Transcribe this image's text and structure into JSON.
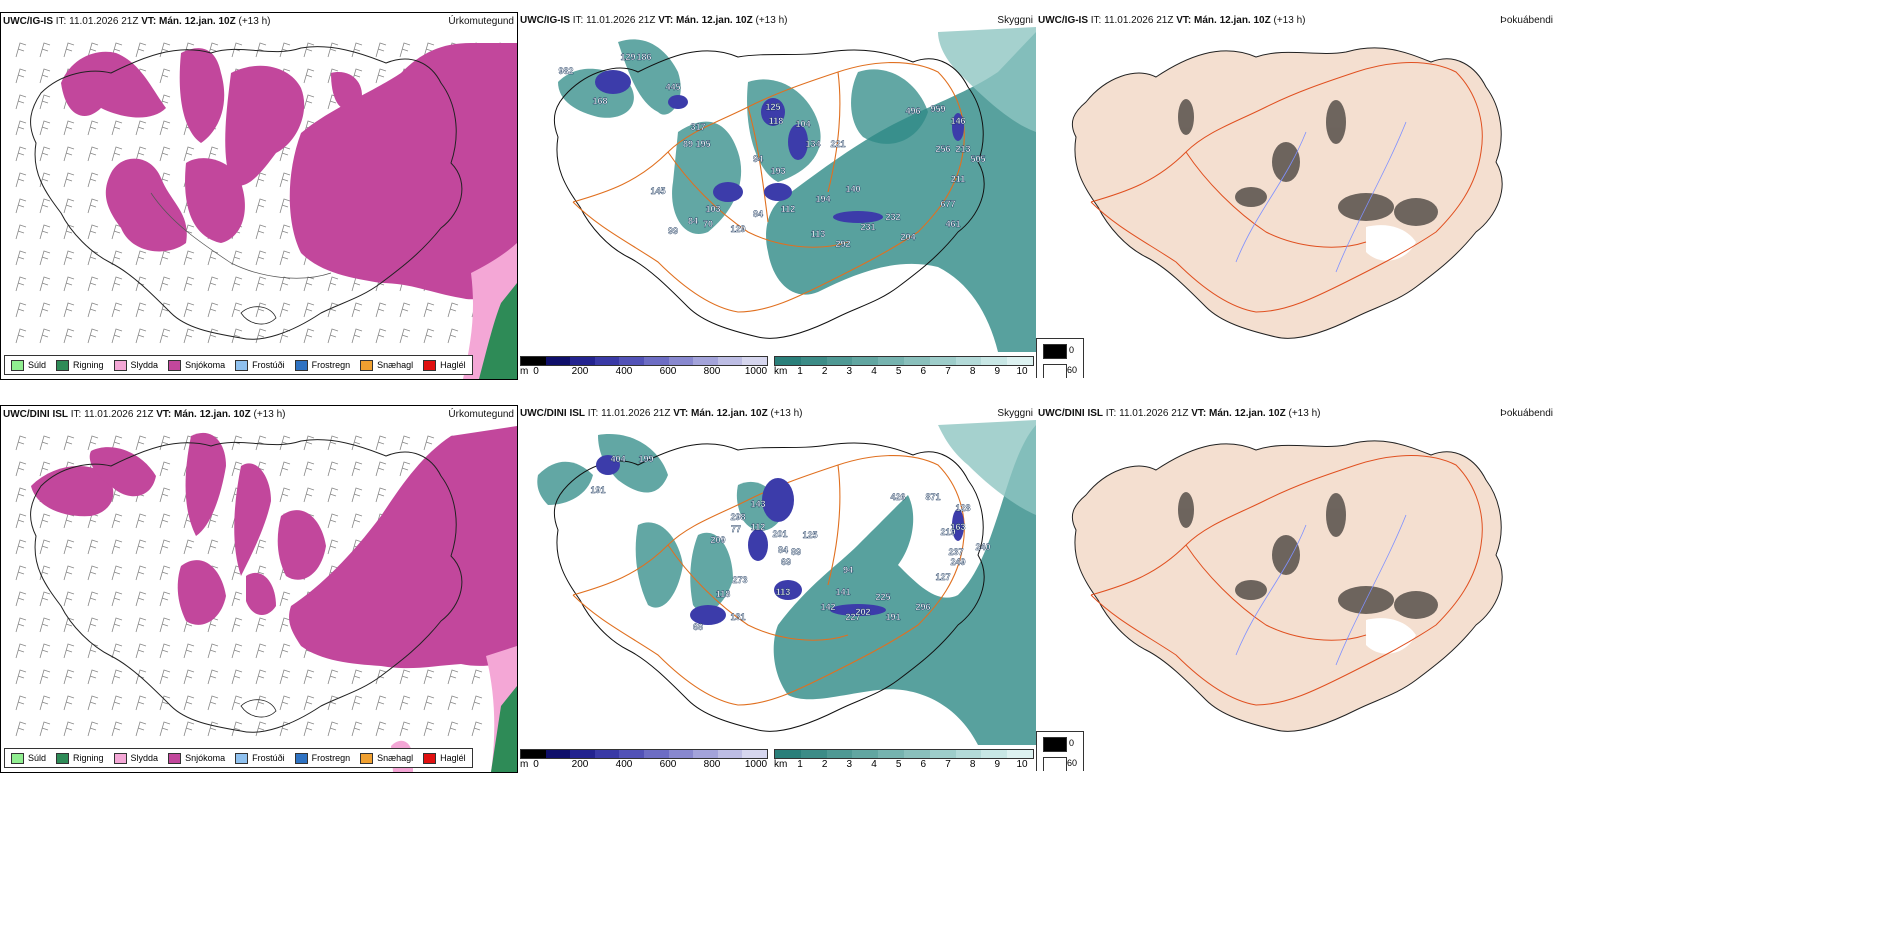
{
  "rows": [
    {
      "model": "UWC/IG-IS",
      "it_label": "IT:",
      "it_value": "11.01.2026 21Z",
      "vt_label": "VT:",
      "vt_value": "Mán. 12.jan. 10Z",
      "lead": "(+13 h)",
      "titles": [
        "Úrkomutegund",
        "Skyggni",
        "Þokuábendi"
      ],
      "ceiling_values": [
        "982",
        "129",
        "186",
        "445",
        "168",
        "317",
        "195",
        "89",
        "145",
        "103",
        "70",
        "84",
        "99",
        "129",
        "125",
        "118",
        "104",
        "134",
        "94",
        "193",
        "84",
        "112",
        "221",
        "140",
        "194",
        "113",
        "292",
        "231",
        "232",
        "204",
        "461",
        "496",
        "959",
        "146",
        "256",
        "213",
        "211",
        "505",
        "677"
      ]
    },
    {
      "model": "UWC/DINI ISL",
      "it_label": "IT:",
      "it_value": "11.01.2026 21Z",
      "vt_label": "VT:",
      "vt_value": "Mán. 12.jan. 10Z",
      "lead": "(+13 h)",
      "titles": [
        "Úrkomutegund",
        "Skyggni",
        "Þokuábendi"
      ],
      "ceiling_values": [
        "404",
        "199",
        "191",
        "298",
        "77",
        "209",
        "143",
        "112",
        "201",
        "125",
        "69",
        "89",
        "273",
        "118",
        "113",
        "94",
        "141",
        "84",
        "68",
        "131",
        "225",
        "142",
        "227",
        "202",
        "191",
        "296",
        "426",
        "871",
        "128",
        "163",
        "219",
        "237",
        "249",
        "240",
        "127"
      ]
    }
  ],
  "precip_legend": [
    {
      "label": "Súld",
      "color": "#90ee90"
    },
    {
      "label": "Rigning",
      "color": "#2e8b57"
    },
    {
      "label": "Slydda",
      "color": "#f4a7d6"
    },
    {
      "label": "Snjókoma",
      "color": "#c2479c"
    },
    {
      "label": "Frostúði",
      "color": "#8fc1ef"
    },
    {
      "label": "Frostregn",
      "color": "#2e72c2"
    },
    {
      "label": "Snæhagl",
      "color": "#f0a030"
    },
    {
      "label": "Haglél",
      "color": "#e01010"
    }
  ],
  "ceiling_bar": {
    "unit": "m",
    "ticks": [
      "0",
      "200",
      "400",
      "600",
      "800",
      "1000"
    ],
    "colors": [
      "#000000",
      "#0f0f6a",
      "#23238f",
      "#3a3aa6",
      "#5252b7",
      "#6d6dc4",
      "#8888cf",
      "#a3a3da",
      "#bdbde4",
      "#d6d6ee"
    ]
  },
  "visibility_bar": {
    "unit": "km",
    "ticks": [
      "1",
      "2",
      "3",
      "4",
      "5",
      "6",
      "7",
      "8",
      "9",
      "10"
    ],
    "colors": [
      "#2a7f7a",
      "#3c8c87",
      "#4f9994",
      "#62a6a1",
      "#76b3af",
      "#8ac0bc",
      "#9ecdca",
      "#b3dad8",
      "#c8e7e5",
      "#ddf2f1"
    ]
  },
  "fog_legend": {
    "top": "0",
    "bottom": "60"
  },
  "colors": {
    "snow": "#c2479c",
    "sleet": "#f4a7d6",
    "rain": "#2e8b57",
    "teal": "#2e8a86",
    "ceiling": "#3c3caa",
    "roads": "#e07020",
    "land": "#f4dfd0",
    "rivers": "#7f90ff"
  }
}
